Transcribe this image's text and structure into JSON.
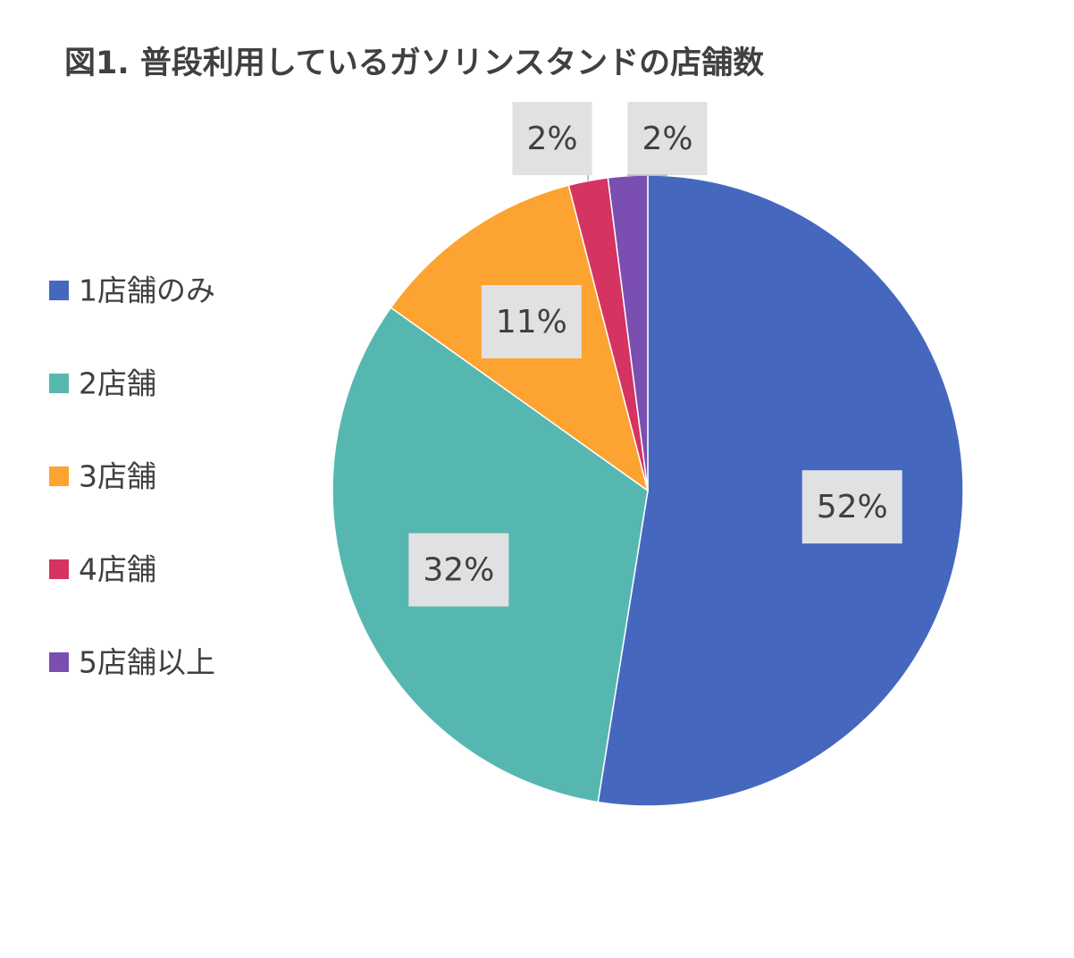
{
  "chart_data": {
    "type": "pie",
    "title": "図1. 普段利用しているガソリンスタンドの店舗数",
    "categories": [
      "1店舗のみ",
      "2店舗",
      "3店舗",
      "4店舗",
      "5店舗以上"
    ],
    "values": [
      52,
      32,
      11,
      2,
      2
    ],
    "value_labels": [
      "52%",
      "32%",
      "11%",
      "2%",
      "2%"
    ],
    "colors": [
      "#4568be",
      "#56b7b1",
      "#fda331",
      "#d53361",
      "#7b4fb2"
    ],
    "legend": "left"
  }
}
